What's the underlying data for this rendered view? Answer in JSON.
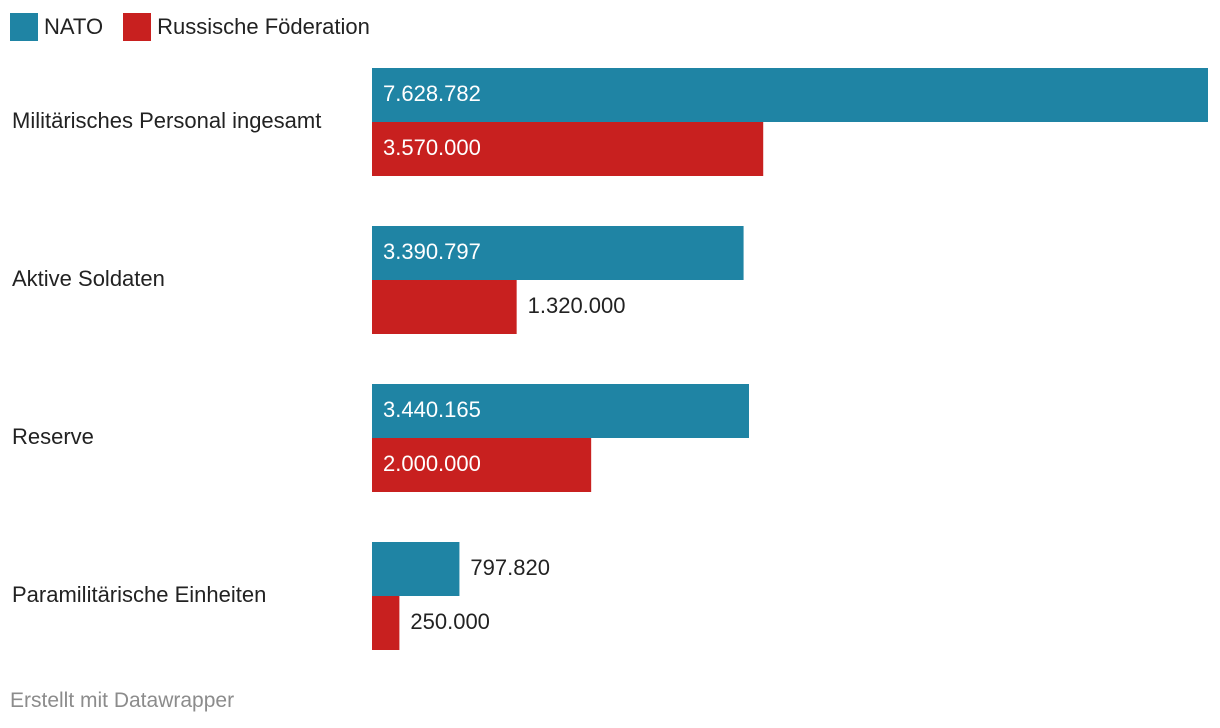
{
  "chart_data": {
    "type": "bar",
    "orientation": "horizontal",
    "categories": [
      "Militärisches Personal ingesamt",
      "Aktive Soldaten",
      "Reserve",
      "Paramilitärische Einheiten"
    ],
    "series": [
      {
        "name": "NATO",
        "color": "#1f84a4",
        "values": [
          7628782,
          3390797,
          3440165,
          797820
        ],
        "labels": [
          "7.628.782",
          "3.390.797",
          "3.440.165",
          "797.820"
        ]
      },
      {
        "name": "Russische Föderation",
        "color": "#c8201f",
        "values": [
          3570000,
          1320000,
          2000000,
          250000
        ],
        "labels": [
          "3.570.000",
          "1.320.000",
          "2.000.000",
          "250.000"
        ]
      }
    ],
    "xlim": [
      0,
      7628782
    ],
    "grid": false,
    "legend_position": "top-left"
  },
  "footer": {
    "text": "Erstellt mit Datawrapper"
  }
}
